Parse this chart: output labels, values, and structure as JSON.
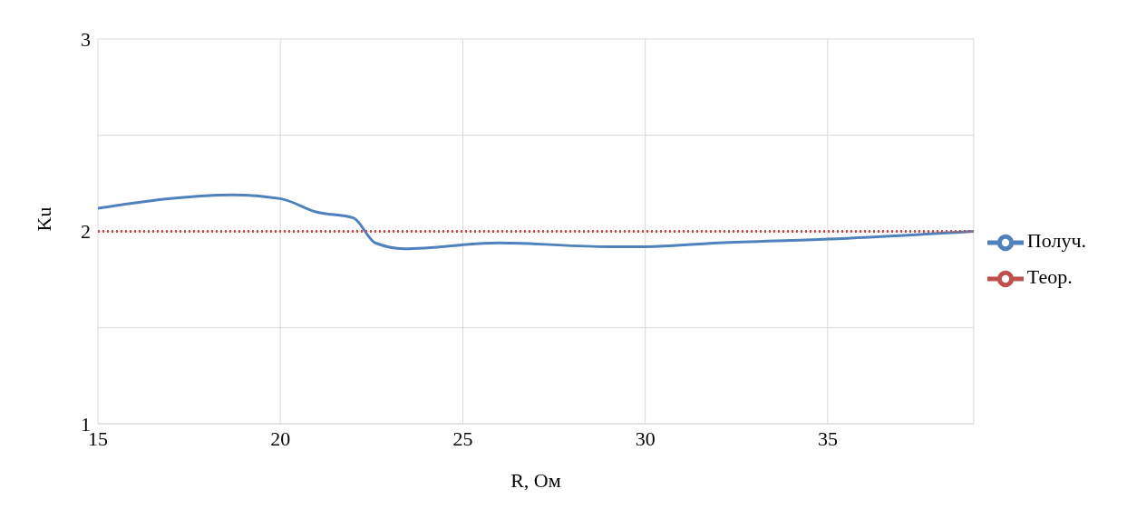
{
  "chart_data": {
    "type": "line",
    "xlabel": "R, Ом",
    "ylabel": "Ku",
    "xlim": [
      15,
      39
    ],
    "xticks": [
      15,
      20,
      25,
      30,
      35
    ],
    "ylim": [
      1,
      3
    ],
    "yticks": [
      1,
      {
        "value": 1.5,
        "label": null
      },
      2,
      {
        "value": 2.5,
        "label": null
      },
      3
    ],
    "grid": true,
    "legend": "right",
    "marker": "none",
    "series": [
      {
        "name": "Получ.",
        "color": "#4f81bd",
        "line_style": "solid",
        "x": [
          15,
          18.7,
          20,
          21,
          22,
          22.6,
          23.4,
          26,
          29,
          30,
          32,
          35,
          39
        ],
        "values": [
          2.12,
          2.19,
          2.17,
          2.1,
          2.07,
          1.94,
          1.91,
          1.94,
          1.92,
          1.92,
          1.94,
          1.96,
          2.0
        ]
      },
      {
        "name": "Теор.",
        "color": "#c0504d",
        "line_style": "dotted",
        "x": [
          15,
          39
        ],
        "values": [
          2,
          2
        ]
      }
    ]
  }
}
